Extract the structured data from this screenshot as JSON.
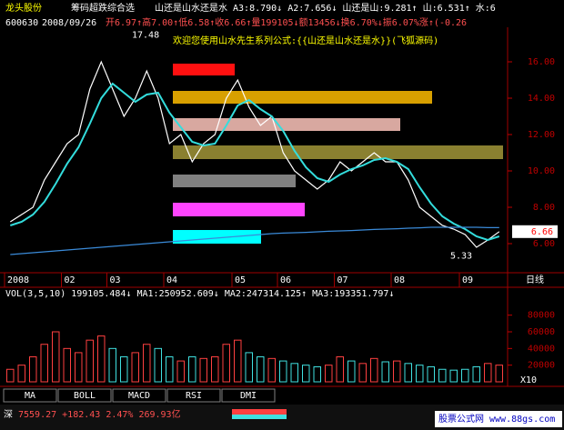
{
  "header": {
    "stock_name": "龙头股份",
    "indicator": "筹码超跌综合选",
    "formula": "山还是山水还是水 A3:8.790↓ A2:7.656↓ 山还是山:9.281↑ 山:6.531↑ 水:6",
    "quote_code": "600630",
    "quote_date": "2008/09/26",
    "quote_prices": "开6.97↑高7.00↑低6.58↑收6.66↑量199105↓额13456↓换6.70%↓振6.07%涨↑(-0.26"
  },
  "welcome": "欢迎您使用山水先生系列公式:{{山还是山水还是水}}(飞狐源码)",
  "period": "日线",
  "volume_header": "VOL(3,5,10) 199105.484↓ MA1:250952.609↓ MA2:247314.125↑ MA3:193351.797↓",
  "tabs": [
    "MA",
    "BOLL",
    "MACD",
    "RSI",
    "DMI"
  ],
  "status": {
    "index": "深",
    "index_value": "7559.27 +182.43 2.47% 269.93亿",
    "site": "股票公式网 www.88gs.com"
  },
  "chart_data": [
    {
      "type": "line",
      "categories": [
        "2008",
        null,
        null,
        null,
        null,
        "02",
        null,
        null,
        null,
        "03",
        null,
        null,
        null,
        null,
        "04",
        null,
        null,
        null,
        null,
        null,
        "05",
        null,
        null,
        null,
        "06",
        null,
        null,
        null,
        null,
        "07",
        null,
        null,
        null,
        null,
        "08",
        null,
        null,
        null,
        null,
        null,
        "09",
        null,
        null,
        null
      ],
      "series": [
        {
          "color": "#ffffff",
          "values": [
            7.2,
            7.6,
            8.0,
            9.5,
            10.5,
            11.5,
            12.0,
            14.5,
            16.0,
            14.5,
            13.0,
            14.0,
            15.5,
            14.0,
            11.5,
            12.0,
            10.5,
            11.5,
            12.0,
            14.0,
            15.0,
            13.5,
            12.5,
            13.0,
            11.0,
            10.0,
            9.5,
            9.0,
            9.5,
            10.5,
            10.0,
            10.5,
            11.0,
            10.5,
            10.5,
            9.5,
            8.0,
            7.5,
            7.0,
            6.8,
            6.5,
            5.8,
            6.2,
            6.66
          ]
        },
        {
          "color": "#33dddd",
          "values": [
            7.0,
            7.2,
            7.6,
            8.3,
            9.3,
            10.4,
            11.3,
            12.6,
            14.0,
            14.8,
            14.3,
            13.8,
            14.2,
            14.3,
            13.2,
            12.4,
            11.6,
            11.4,
            11.5,
            12.5,
            13.6,
            13.9,
            13.4,
            13.0,
            12.2,
            11.1,
            10.2,
            9.6,
            9.4,
            9.8,
            10.1,
            10.3,
            10.6,
            10.7,
            10.5,
            10.1,
            9.1,
            8.2,
            7.5,
            7.1,
            6.8,
            6.4,
            6.2,
            6.4
          ]
        },
        {
          "color": "#3a8ad8",
          "values": [
            5.4,
            5.45,
            5.5,
            5.55,
            5.6,
            5.65,
            5.7,
            5.75,
            5.8,
            5.85,
            5.9,
            5.95,
            6.0,
            6.05,
            6.1,
            6.15,
            6.2,
            6.25,
            6.3,
            6.35,
            6.4,
            6.45,
            6.5,
            6.55,
            6.58,
            6.6,
            6.62,
            6.65,
            6.68,
            6.7,
            6.72,
            6.75,
            6.78,
            6.8,
            6.82,
            6.85,
            6.87,
            6.9,
            6.9,
            6.9,
            6.9,
            6.9,
            6.88,
            6.88
          ]
        }
      ],
      "ylim": [
        4.5,
        17.75
      ],
      "yticks": [
        {
          "value": 6,
          "label": "6.00"
        },
        {
          "value": 8,
          "label": "8.00"
        },
        {
          "value": 10,
          "label": "10.00"
        },
        {
          "value": 12,
          "label": "12.00"
        },
        {
          "value": 14,
          "label": "14.00"
        },
        {
          "value": 16,
          "label": "16.00"
        }
      ],
      "high": 17.48,
      "low": 5.33,
      "last": 6.66
    },
    {
      "type": "bar",
      "up_color": "#ff4040",
      "down_color": "#40e0e0",
      "values": [
        15000,
        20000,
        30000,
        45000,
        60000,
        40000,
        35000,
        50000,
        55000,
        40000,
        30000,
        35000,
        45000,
        40000,
        30000,
        25000,
        30000,
        28000,
        30000,
        45000,
        50000,
        35000,
        30000,
        28000,
        25000,
        22000,
        20000,
        18000,
        20000,
        30000,
        25000,
        22000,
        28000,
        24000,
        25000,
        22000,
        20000,
        18000,
        15000,
        14000,
        15000,
        18000,
        22000,
        20000
      ],
      "ylim": [
        0,
        96000
      ],
      "yticks": [
        20000,
        40000,
        60000,
        80000
      ],
      "multiplier": "X10"
    }
  ]
}
